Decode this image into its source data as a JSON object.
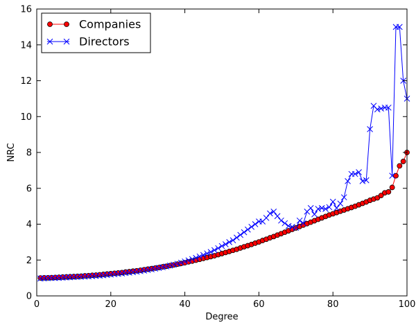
{
  "chart_data": {
    "type": "line",
    "xlabel": "Degree",
    "ylabel": "NRC",
    "xlim": [
      0,
      100
    ],
    "ylim": [
      0,
      16
    ],
    "x_ticks": [
      0,
      20,
      40,
      60,
      80,
      100
    ],
    "y_ticks": [
      0,
      2,
      4,
      6,
      8,
      10,
      12,
      14,
      16
    ],
    "grid": false,
    "legend_position": "top-left",
    "series": [
      {
        "name": "Companies",
        "marker": "circle",
        "color": "#ff0000",
        "line_color": "#ff0000",
        "x": [
          1,
          2,
          3,
          4,
          5,
          6,
          7,
          8,
          9,
          10,
          11,
          12,
          13,
          14,
          15,
          16,
          17,
          18,
          19,
          20,
          21,
          22,
          23,
          24,
          25,
          26,
          27,
          28,
          29,
          30,
          31,
          32,
          33,
          34,
          35,
          36,
          37,
          38,
          39,
          40,
          41,
          42,
          43,
          44,
          45,
          46,
          47,
          48,
          49,
          50,
          51,
          52,
          53,
          54,
          55,
          56,
          57,
          58,
          59,
          60,
          61,
          62,
          63,
          64,
          65,
          66,
          67,
          68,
          69,
          70,
          71,
          72,
          73,
          74,
          75,
          76,
          77,
          78,
          79,
          80,
          81,
          82,
          83,
          84,
          85,
          86,
          87,
          88,
          89,
          90,
          91,
          92,
          93,
          94,
          95,
          96,
          97,
          98,
          99,
          100
        ],
        "y": [
          1.0,
          1.01,
          1.01,
          1.02,
          1.03,
          1.04,
          1.05,
          1.06,
          1.07,
          1.08,
          1.09,
          1.1,
          1.12,
          1.13,
          1.15,
          1.16,
          1.18,
          1.2,
          1.22,
          1.24,
          1.26,
          1.28,
          1.3,
          1.33,
          1.35,
          1.38,
          1.4,
          1.43,
          1.46,
          1.49,
          1.52,
          1.55,
          1.58,
          1.62,
          1.65,
          1.69,
          1.73,
          1.77,
          1.81,
          1.85,
          1.9,
          1.94,
          1.99,
          2.04,
          2.09,
          2.14,
          2.19,
          2.24,
          2.3,
          2.36,
          2.42,
          2.48,
          2.54,
          2.6,
          2.67,
          2.74,
          2.8,
          2.87,
          2.94,
          3.01,
          3.09,
          3.16,
          3.24,
          3.31,
          3.39,
          3.47,
          3.55,
          3.63,
          3.71,
          3.79,
          3.87,
          3.95,
          4.03,
          4.11,
          4.19,
          4.27,
          4.35,
          4.43,
          4.51,
          4.58,
          4.65,
          4.72,
          4.79,
          4.86,
          4.93,
          5.0,
          5.08,
          5.16,
          5.24,
          5.33,
          5.4,
          5.47,
          5.6,
          5.75,
          5.8,
          6.05,
          6.7,
          7.25,
          7.5,
          8.0
        ]
      },
      {
        "name": "Directors",
        "marker": "x",
        "color": "#0000ff",
        "line_color": "#0000ff",
        "x": [
          1,
          2,
          3,
          4,
          5,
          6,
          7,
          8,
          9,
          10,
          11,
          12,
          13,
          14,
          15,
          16,
          17,
          18,
          19,
          20,
          21,
          22,
          23,
          24,
          25,
          26,
          27,
          28,
          29,
          30,
          31,
          32,
          33,
          34,
          35,
          36,
          37,
          38,
          39,
          40,
          41,
          42,
          43,
          44,
          45,
          46,
          47,
          48,
          49,
          50,
          51,
          52,
          53,
          54,
          55,
          56,
          57,
          58,
          59,
          60,
          61,
          62,
          63,
          64,
          65,
          66,
          67,
          68,
          69,
          70,
          71,
          72,
          73,
          74,
          75,
          76,
          77,
          78,
          79,
          80,
          81,
          82,
          83,
          84,
          85,
          86,
          87,
          88,
          89,
          90,
          91,
          92,
          93,
          94,
          95,
          96,
          97,
          98,
          99,
          100
        ],
        "y": [
          0.97,
          0.98,
          0.99,
          1.0,
          1.0,
          1.01,
          1.02,
          1.03,
          1.04,
          1.05,
          1.06,
          1.07,
          1.08,
          1.09,
          1.1,
          1.12,
          1.13,
          1.15,
          1.17,
          1.19,
          1.21,
          1.23,
          1.25,
          1.28,
          1.3,
          1.33,
          1.35,
          1.38,
          1.41,
          1.45,
          1.48,
          1.52,
          1.56,
          1.6,
          1.64,
          1.69,
          1.74,
          1.79,
          1.85,
          1.92,
          1.98,
          2.05,
          2.12,
          2.2,
          2.28,
          2.37,
          2.45,
          2.55,
          2.66,
          2.78,
          2.88,
          3.0,
          3.1,
          3.25,
          3.4,
          3.55,
          3.7,
          3.85,
          4.0,
          4.15,
          4.15,
          4.35,
          4.6,
          4.7,
          4.45,
          4.2,
          4.05,
          3.9,
          3.85,
          3.8,
          4.2,
          4.05,
          4.7,
          4.9,
          4.55,
          4.85,
          4.9,
          4.85,
          4.95,
          5.25,
          4.9,
          5.15,
          5.5,
          6.4,
          6.8,
          6.8,
          6.9,
          6.4,
          6.45,
          9.3,
          10.6,
          10.4,
          10.45,
          10.5,
          10.5,
          6.7,
          15.0,
          15.0,
          12.0,
          11.0
        ]
      }
    ]
  }
}
